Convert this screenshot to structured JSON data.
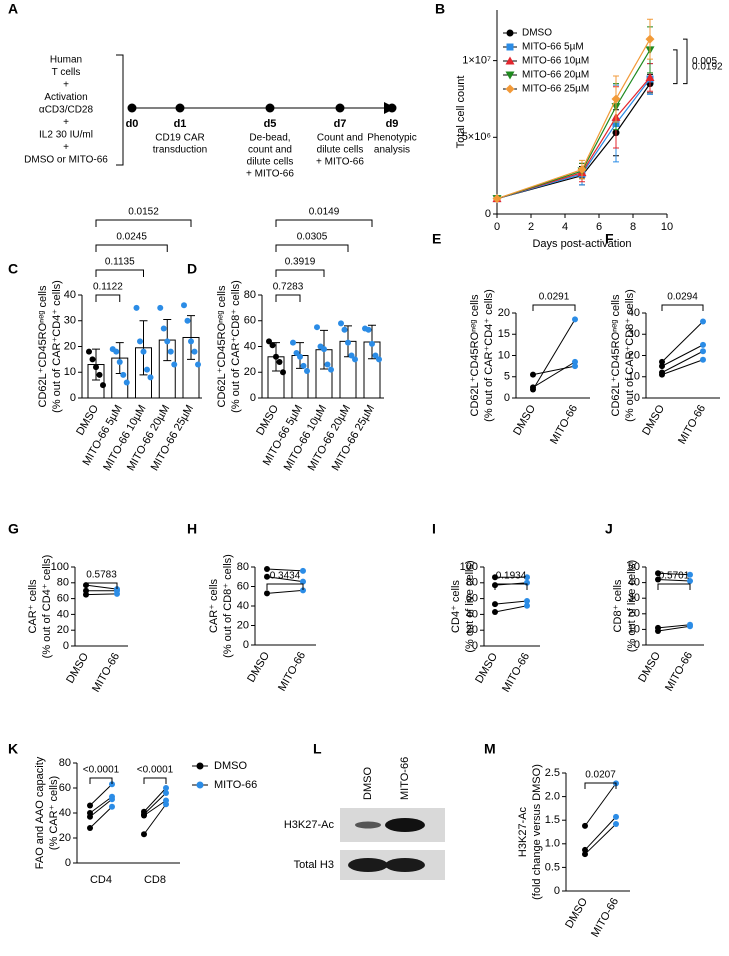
{
  "diagram": {
    "panel": "A",
    "conditions": [
      "Human",
      "T cells",
      "+",
      "Activation",
      "αCD3/CD28",
      "+",
      "IL2 30 IU/ml",
      "+",
      "DMSO or MITO-66"
    ],
    "timepoints": [
      {
        "label": "d0"
      },
      {
        "label": "d1",
        "text": [
          "CD19 CAR",
          "transduction"
        ]
      },
      {
        "label": "d5",
        "text": [
          "De-bead,",
          "count and",
          "dilute cells",
          "+ MITO-66"
        ]
      },
      {
        "label": "d7",
        "text": [
          "Count and",
          "dilute cells",
          "+ MITO-66"
        ]
      },
      {
        "label": "d9",
        "text": [
          "Phenotypic",
          "analysis"
        ]
      }
    ]
  },
  "blot": {
    "panel": "L",
    "lanes": [
      "DMSO",
      "MITO-66"
    ],
    "rows": [
      "H3K27-Ac",
      "Total H3"
    ]
  },
  "chart_data": [
    {
      "panel": "B",
      "type": "line",
      "ylabel": [
        "Total cell count"
      ],
      "xlabel": "Days post-activation",
      "x": [
        0,
        5,
        7,
        9
      ],
      "xlim": [
        0,
        10
      ],
      "xticks": [
        0,
        2,
        4,
        6,
        8,
        10
      ],
      "ylim": [
        0,
        13300000
      ],
      "yticks": [
        0,
        {
          "value": 5000000,
          "label": "5×10⁶"
        },
        {
          "value": 10000000,
          "label": "1×10⁷"
        }
      ],
      "series": [
        {
          "name": "DMSO",
          "color": "#000000",
          "marker": "circle",
          "values": [
            1000000,
            2500000,
            5300000,
            8500000
          ],
          "errors": [
            0,
            600000,
            1500000,
            600000
          ]
        },
        {
          "name": "MITO-66 5µM",
          "color": "#2b8ce6",
          "marker": "square",
          "values": [
            1000000,
            2600000,
            5900000,
            8800000
          ],
          "errors": [
            0,
            700000,
            2500000,
            1000000
          ]
        },
        {
          "name": "MITO-66 10µM",
          "color": "#e3262e",
          "marker": "triangle-up",
          "values": [
            1000000,
            2700000,
            6300000,
            8900000
          ],
          "errors": [
            0,
            600000,
            2000000,
            900000
          ]
        },
        {
          "name": "MITO-66 20µM",
          "color": "#1f8a1f",
          "marker": "triangle-down",
          "values": [
            1000000,
            2800000,
            7000000,
            10700000
          ],
          "errors": [
            0,
            500000,
            1500000,
            1500000
          ]
        },
        {
          "name": "MITO-66 25µM",
          "color": "#f29a38",
          "marker": "diamond",
          "values": [
            1000000,
            2900000,
            7500000,
            11400000
          ],
          "errors": [
            0,
            600000,
            1500000,
            1300000
          ]
        }
      ],
      "comparisons": [
        {
          "series": [
            4,
            0
          ],
          "text": "0.005"
        },
        {
          "series": [
            3,
            0
          ],
          "text": "0.0192"
        }
      ]
    },
    {
      "panel": "C",
      "type": "bar",
      "ylabel": [
        "CD62L⁺CD45ROⁿᵉᵍ cells",
        "(% out of CAR⁺CD4⁺ cells)"
      ],
      "categories": [
        "DMSO",
        "MITO-66 5µM",
        "MITO-66 10µM",
        "MITO-66 20µM",
        "MITO-66 25µM"
      ],
      "values": [
        13,
        15.5,
        19.5,
        22.5,
        23.5
      ],
      "errors": [
        6,
        6,
        10.5,
        8,
        8.5
      ],
      "points": [
        [
          18,
          15,
          12,
          9,
          5
        ],
        [
          19,
          18,
          14,
          9,
          6
        ],
        [
          35,
          22,
          18,
          11,
          8
        ],
        [
          35,
          27,
          22,
          18,
          13
        ],
        [
          36,
          30,
          22,
          18,
          13
        ]
      ],
      "bar_color": "#ffffff",
      "point_colors": [
        "#000000",
        "#2b8ce6",
        "#2b8ce6",
        "#2b8ce6",
        "#2b8ce6"
      ],
      "ylim": [
        0,
        40
      ],
      "yticks": [
        0,
        10,
        20,
        30,
        40
      ],
      "comparisons": [
        {
          "groups": [
            0,
            1
          ],
          "text": "0.1122"
        },
        {
          "groups": [
            0,
            2
          ],
          "text": "0.1135"
        },
        {
          "groups": [
            0,
            3
          ],
          "text": "0.0245"
        },
        {
          "groups": [
            0,
            4
          ],
          "text": "0.0152"
        }
      ]
    },
    {
      "panel": "D",
      "type": "bar",
      "ylabel": [
        "CD62L⁺CD45ROⁿᵉᵍ cells",
        "(% out of CAR⁺CD8⁺ cells)"
      ],
      "categories": [
        "DMSO",
        "MITO-66 5µM",
        "MITO-66 10µM",
        "MITO-66 20µM",
        "MITO-66 25µM"
      ],
      "values": [
        32,
        33,
        37.5,
        44,
        43.5
      ],
      "errors": [
        11,
        10,
        15,
        12,
        13
      ],
      "points": [
        [
          44,
          41,
          32,
          28,
          20
        ],
        [
          43,
          35,
          32,
          25,
          21
        ],
        [
          55,
          40,
          38,
          26,
          22
        ],
        [
          58,
          53,
          43,
          33,
          30
        ],
        [
          54,
          53,
          42,
          33,
          30
        ]
      ],
      "bar_color": "#ffffff",
      "point_colors": [
        "#000000",
        "#2b8ce6",
        "#2b8ce6",
        "#2b8ce6",
        "#2b8ce6"
      ],
      "ylim": [
        0,
        80
      ],
      "yticks": [
        0,
        20,
        40,
        60,
        80
      ],
      "comparisons": [
        {
          "groups": [
            0,
            1
          ],
          "text": "0.7283"
        },
        {
          "groups": [
            0,
            2
          ],
          "text": "0.3919"
        },
        {
          "groups": [
            0,
            3
          ],
          "text": "0.0305"
        },
        {
          "groups": [
            0,
            4
          ],
          "text": "0.0149"
        }
      ]
    },
    {
      "panel": "E",
      "type": "paired",
      "ylabel": [
        "CD62L⁺CD45ROⁿᵉᵍ cells",
        "(% out of CAR⁺CD4⁺ cells)"
      ],
      "categories": [
        "DMSO",
        "MITO-66"
      ],
      "values": [
        [
          2,
          2.5,
          5.5
        ],
        [
          18.5,
          8.5,
          7.5
        ]
      ],
      "colors": [
        "#000000",
        "#2b8ce6"
      ],
      "ylim": [
        0,
        20
      ],
      "yticks": [
        0,
        5,
        10,
        15,
        20
      ],
      "comparisons": [
        {
          "groups": [
            0,
            1
          ],
          "text": "0.0291"
        }
      ]
    },
    {
      "panel": "F",
      "type": "paired",
      "ylabel": [
        "CD62L⁺CD45ROⁿᵉᵍ cells",
        "(% out of CAR⁺CD8⁺ cells)"
      ],
      "categories": [
        "DMSO",
        "MITO-66"
      ],
      "values": [
        [
          17,
          15,
          12,
          11
        ],
        [
          36,
          25,
          22,
          18
        ]
      ],
      "colors": [
        "#000000",
        "#2b8ce6"
      ],
      "ylim": [
        0,
        40
      ],
      "yticks": [
        0,
        10,
        20,
        30,
        40
      ],
      "comparisons": [
        {
          "groups": [
            0,
            1
          ],
          "text": "0.0294"
        }
      ]
    },
    {
      "panel": "G",
      "type": "paired",
      "ylabel": [
        "CAR⁺ cells",
        "(% out of CD4⁺ cells)"
      ],
      "categories": [
        "DMSO",
        "MITO-66"
      ],
      "values": [
        [
          77,
          70,
          65
        ],
        [
          72,
          70,
          66
        ]
      ],
      "colors": [
        "#000000",
        "#2b8ce6"
      ],
      "ylim": [
        0,
        100
      ],
      "yticks": [
        0,
        20,
        40,
        60,
        80,
        100
      ],
      "comparisons": [
        {
          "groups": [
            0,
            1
          ],
          "text": "0.5783"
        }
      ]
    },
    {
      "panel": "H",
      "type": "paired",
      "ylabel": [
        "CAR⁺ cells",
        "(% out of CD8⁺ cells)"
      ],
      "categories": [
        "DMSO",
        "MITO-66"
      ],
      "values": [
        [
          78,
          70,
          53
        ],
        [
          76,
          65,
          56
        ]
      ],
      "colors": [
        "#000000",
        "#2b8ce6"
      ],
      "ylim": [
        0,
        80
      ],
      "yticks": [
        0,
        20,
        40,
        60,
        80
      ],
      "comparisons": [
        {
          "groups": [
            0,
            1
          ],
          "text": "0.3434"
        }
      ]
    },
    {
      "panel": "I",
      "type": "paired",
      "ylabel": [
        "CD4⁺ cells",
        "(% out of live cells)"
      ],
      "categories": [
        "DMSO",
        "MITO-66"
      ],
      "values": [
        [
          87,
          77,
          53,
          43
        ],
        [
          87,
          80,
          57,
          51
        ]
      ],
      "colors": [
        "#000000",
        "#2b8ce6"
      ],
      "ylim": [
        0,
        100
      ],
      "yticks": [
        0,
        20,
        40,
        60,
        80,
        100
      ],
      "comparisons": [
        {
          "groups": [
            0,
            1
          ],
          "text": "0.1934"
        }
      ]
    },
    {
      "panel": "J",
      "type": "paired",
      "ylabel": [
        "CD8⁺ cells",
        "(% out of live cells)"
      ],
      "categories": [
        "DMSO",
        "MITO-66"
      ],
      "values": [
        [
          46,
          42,
          11,
          9
        ],
        [
          45,
          41,
          13,
          12
        ]
      ],
      "colors": [
        "#000000",
        "#2b8ce6"
      ],
      "ylim": [
        0,
        50
      ],
      "yticks": [
        0,
        10,
        20,
        30,
        40,
        50
      ],
      "comparisons": [
        {
          "groups": [
            0,
            1
          ],
          "text": "0.5701"
        }
      ]
    },
    {
      "panel": "K",
      "type": "paired-grouped",
      "ylabel": [
        "FAO and AAO capacity",
        "(% CAR⁺ cells)"
      ],
      "categories": [
        "CD4",
        "CD8"
      ],
      "series": [
        {
          "name": "DMSO",
          "color": "#000000",
          "values": [
            [
              46,
              40,
              37,
              28
            ],
            [
              41,
              39,
              38,
              23
            ]
          ]
        },
        {
          "name": "MITO-66",
          "color": "#2b8ce6",
          "values": [
            [
              63,
              53,
              51,
              45
            ],
            [
              60,
              56,
              50,
              47
            ]
          ]
        }
      ],
      "ylim": [
        0,
        80
      ],
      "yticks": [
        0,
        20,
        40,
        60,
        80
      ],
      "comparisons": [
        {
          "category": 0,
          "text": "<0.0001"
        },
        {
          "category": 1,
          "text": "<0.0001"
        }
      ]
    },
    {
      "panel": "M",
      "type": "paired",
      "ylabel": [
        "H3K27-Ac",
        "(fold change versus DMSO)"
      ],
      "categories": [
        "DMSO",
        "MITO-66"
      ],
      "values": [
        [
          1.38,
          0.87,
          0.78
        ],
        [
          2.28,
          1.57,
          1.42
        ]
      ],
      "colors": [
        "#000000",
        "#2b8ce6"
      ],
      "ylim": [
        0,
        2.5
      ],
      "yticks": [
        0,
        0.5,
        {
          "value": 1,
          "label": "1.0"
        },
        1.5,
        {
          "value": 2,
          "label": "2.0"
        },
        2.5
      ],
      "comparisons": [
        {
          "groups": [
            0,
            1
          ],
          "text": "0.0207"
        }
      ]
    }
  ]
}
